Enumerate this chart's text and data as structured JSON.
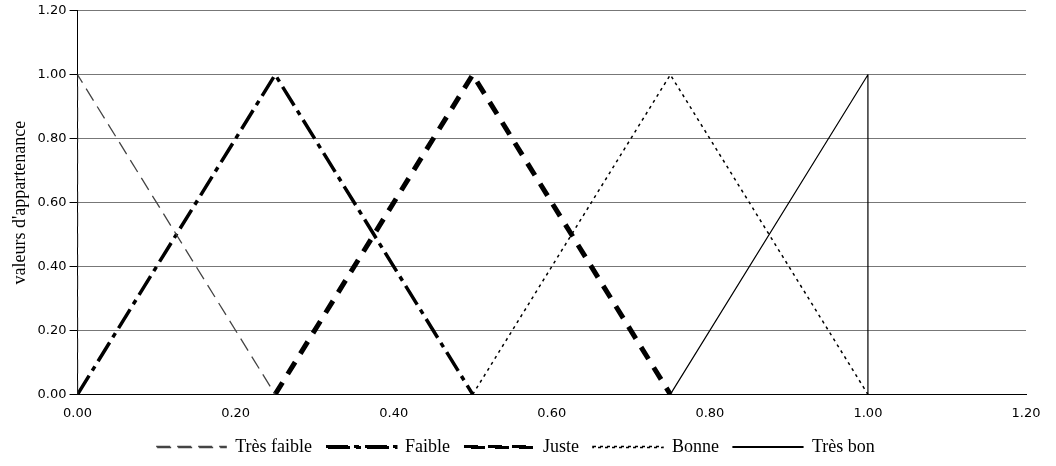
{
  "chart_data": {
    "type": "line",
    "ylabel": "valeurs d'appartenance",
    "xlim": [
      0,
      1.2
    ],
    "xticks": [
      {
        "value": 0,
        "label": "0.00"
      },
      {
        "value": 0.2,
        "label": "0.20"
      },
      {
        "value": 0.4,
        "label": "0.40"
      },
      {
        "value": 0.6,
        "label": "0.60"
      },
      {
        "value": 0.8,
        "label": "0.80"
      },
      {
        "value": 1,
        "label": "1.00"
      },
      {
        "value": 1.2,
        "label": "1.20"
      }
    ],
    "ylim": [
      0,
      1.2
    ],
    "yticks": [
      {
        "value": 0,
        "label": "0.00"
      },
      {
        "value": 0.2,
        "label": "0.20"
      },
      {
        "value": 0.4,
        "label": "0.40"
      },
      {
        "value": 0.6,
        "label": "0.60"
      },
      {
        "value": 0.8,
        "label": "0.80"
      },
      {
        "value": 1,
        "label": "1.00"
      },
      {
        "value": 1.2,
        "label": "1.20"
      }
    ],
    "grid": "y",
    "legend": "bottom",
    "marker": "none",
    "series": [
      {
        "name": "Très faible",
        "color": "#444444",
        "line_style": "dashed",
        "x": [
          0,
          0,
          0.25
        ],
        "values": [
          0,
          1,
          0
        ]
      },
      {
        "name": "Faible",
        "color": "#000000",
        "line_style": "dashed",
        "x": [
          0,
          0.25,
          0.5
        ],
        "values": [
          0,
          1,
          0
        ]
      },
      {
        "name": "Juste",
        "color": "#000000",
        "line_style": "dashed",
        "x": [
          0.25,
          0.5,
          0.75
        ],
        "values": [
          0,
          1,
          0
        ]
      },
      {
        "name": "Bonne",
        "color": "#000000",
        "line_style": "dotted",
        "x": [
          0.5,
          0.75,
          1
        ],
        "values": [
          0,
          1,
          0
        ]
      },
      {
        "name": "Très bon",
        "color": "#000000",
        "line_style": "solid",
        "x": [
          0.75,
          1,
          1
        ],
        "values": [
          0,
          1,
          0
        ]
      }
    ]
  }
}
